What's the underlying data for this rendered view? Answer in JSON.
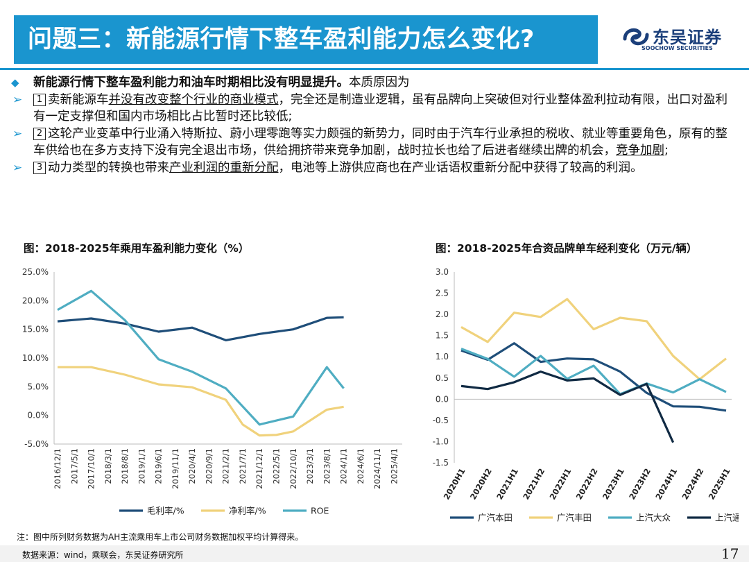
{
  "header": {
    "title": "问题三：新能源行情下整车盈利能力怎么变化?",
    "logo_cn": "东吴证券",
    "logo_en": "SOOCHOW SECURITIES"
  },
  "bullets": {
    "lead_bold": "新能源行情下整车盈利能力和油车时期相比没有明显提升。",
    "lead_rest": "本质原因为",
    "p1": {
      "num": "1",
      "a": "卖新能源车",
      "u": "并没有改变整个行业的商业模式",
      "b": "，完全还是制造业逻辑，虽有品牌向上突破但对行业整体盈利拉动有限，出口对盈利有一定支撑但和国内市场相比占比暂时还比较低;"
    },
    "p2": {
      "num": "2",
      "a": "这轮产业变革中行业涌入特斯拉、蔚小理零跑等实力颇强的新势力，同时由于汽车行业承担的税收、就业等重要角色，原有的整车供给也在多方支持下没有完全退出市场，供给拥挤带来竞争加剧，战时拉长也给了后进者继续出牌的机会，",
      "u": "竞争加剧",
      "b": ";"
    },
    "p3": {
      "num": "3",
      "a": "动力类型的转换也带来",
      "u": "产业利润的重新分配",
      "b": "，电池等上游供应商也在产业话语权重新分配中获得了较高的利润。"
    }
  },
  "chart_data": [
    {
      "type": "line",
      "title": "图：2018-2025年乘用车盈利能力变化（%）",
      "categories": [
        "2016/12/1",
        "2017/5/1",
        "2017/10/1",
        "2018/3/1",
        "2018/8/1",
        "2019/1/1",
        "2019/6/1",
        "2019/11/1",
        "2020/4/1",
        "2020/9/1",
        "2021/2/1",
        "2021/7/1",
        "2021/12/1",
        "2022/5/1",
        "2022/10/1",
        "2023/3/1",
        "2023/8/1",
        "2024/1/1",
        "2024/6/1",
        "2024/11/1",
        "2025/4/1"
      ],
      "ylim": [
        -5,
        25
      ],
      "yticks": [
        "-5.0%",
        "0.0%",
        "5.0%",
        "10.0%",
        "15.0%",
        "20.0%",
        "25.0%"
      ],
      "ytick_values": [
        -5,
        0,
        5,
        10,
        15,
        20,
        25
      ],
      "series": [
        {
          "name": "毛利率/%",
          "color": "#1f4e79",
          "points": [
            [
              0,
              16.4
            ],
            [
              2,
              16.9
            ],
            [
              4,
              16.0
            ],
            [
              6,
              14.6
            ],
            [
              8,
              15.3
            ],
            [
              10,
              13.1
            ],
            [
              12,
              14.2
            ],
            [
              14,
              15.0
            ],
            [
              16,
              17.0
            ],
            [
              17,
              17.1
            ]
          ]
        },
        {
          "name": "净利率/%",
          "color": "#f0d27c",
          "points": [
            [
              0,
              8.4
            ],
            [
              2,
              8.4
            ],
            [
              4,
              7.1
            ],
            [
              6,
              5.4
            ],
            [
              8,
              4.9
            ],
            [
              10,
              2.7
            ],
            [
              11,
              -1.6
            ],
            [
              12,
              -3.5
            ],
            [
              13,
              -3.4
            ],
            [
              14,
              -2.8
            ],
            [
              16,
              1.0
            ],
            [
              17,
              1.5
            ]
          ]
        },
        {
          "name": "ROE",
          "color": "#4fadc2",
          "points": [
            [
              0,
              18.4
            ],
            [
              2,
              21.7
            ],
            [
              4,
              16.6
            ],
            [
              6,
              9.8
            ],
            [
              8,
              7.6
            ],
            [
              10,
              4.7
            ],
            [
              12,
              -1.6
            ],
            [
              14,
              -0.2
            ],
            [
              16,
              8.4
            ],
            [
              17,
              4.7
            ]
          ]
        }
      ]
    },
    {
      "type": "line",
      "title": "图：2018-2025年合资品牌单车经利变化（万元/辆）",
      "categories": [
        "2020H1",
        "2020H2",
        "2021H1",
        "2021H2",
        "2022H1",
        "2022H2",
        "2023H1",
        "2023H2",
        "2024H1",
        "2024H2",
        "2025H1"
      ],
      "ylim": [
        -1.5,
        3.0
      ],
      "yticks": [
        "-1.5",
        "-1.0",
        "-0.5",
        "0.0",
        "0.5",
        "1.0",
        "1.5",
        "2.0",
        "2.5",
        "3.0"
      ],
      "ytick_values": [
        -1.5,
        -1.0,
        -0.5,
        0.0,
        0.5,
        1.0,
        1.5,
        2.0,
        2.5,
        3.0
      ],
      "series": [
        {
          "name": "广汽本田",
          "color": "#1f4e79",
          "values": [
            1.15,
            0.93,
            1.32,
            0.88,
            0.96,
            0.94,
            0.65,
            0.15,
            -0.17,
            -0.18,
            -0.27
          ]
        },
        {
          "name": "广汽丰田",
          "color": "#f0d27c",
          "values": [
            1.7,
            1.35,
            2.04,
            1.94,
            2.36,
            1.65,
            1.92,
            1.84,
            1.02,
            0.47,
            0.96
          ]
        },
        {
          "name": "上汽大众",
          "color": "#4fadc2",
          "values": [
            1.19,
            0.95,
            0.53,
            1.02,
            0.48,
            0.79,
            0.12,
            0.37,
            0.16,
            0.47,
            0.17
          ]
        },
        {
          "name": "上汽通用",
          "color": "#102a43",
          "values": [
            0.31,
            0.24,
            0.4,
            0.65,
            0.44,
            0.49,
            0.1,
            0.36,
            -1.02,
            null,
            null
          ]
        }
      ]
    }
  ],
  "footnote": "注：图中所列财务数据为AH主流乘用车上市公司财务数据加权平均计算得来。",
  "source": "数据来源：wind，乘联会，东吴证券研究所",
  "page_number": "17"
}
